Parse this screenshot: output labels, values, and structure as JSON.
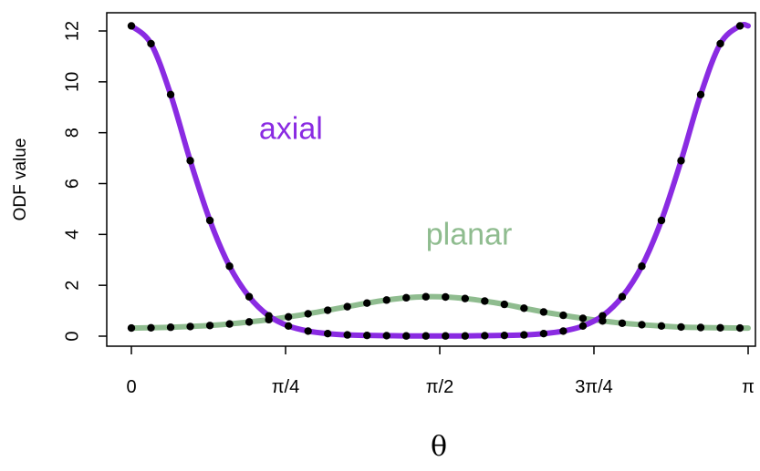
{
  "chart_data": {
    "type": "line",
    "xlabel": "θ",
    "ylabel": "ODF value",
    "xlim": [
      0,
      3.14159
    ],
    "ylim": [
      -0.4,
      12.6
    ],
    "x_ticks": [
      {
        "value": 0,
        "label": "0"
      },
      {
        "value": 0.7854,
        "label": "π/4"
      },
      {
        "value": 1.5708,
        "label": "π/2"
      },
      {
        "value": 2.3562,
        "label": "3π/4"
      },
      {
        "value": 3.14159,
        "label": "π"
      }
    ],
    "y_ticks": [
      0,
      2,
      4,
      6,
      8,
      10,
      12
    ],
    "grid": false,
    "annotations": [
      {
        "text": "axial",
        "x": 0.65,
        "y": 7.75,
        "color": "#8a2be2"
      },
      {
        "text": "planar",
        "x": 1.5,
        "y": 3.6,
        "color": "#8fbc8f"
      }
    ],
    "series": [
      {
        "name": "axial",
        "color": "#8a2be2",
        "x": [
          0,
          0.1,
          0.2,
          0.3,
          0.4,
          0.5,
          0.6,
          0.7,
          0.8,
          0.9,
          1.0,
          1.1,
          1.2,
          1.3,
          1.4,
          1.5,
          1.6,
          1.7,
          1.8,
          1.9,
          2.0,
          2.1,
          2.2,
          2.3,
          2.4,
          2.5,
          2.6,
          2.7,
          2.8,
          2.9,
          3.0,
          3.1,
          3.14159
        ],
        "values": [
          12.2,
          11.5,
          9.5,
          6.9,
          4.55,
          2.75,
          1.55,
          0.8,
          0.4,
          0.2,
          0.1,
          0.05,
          0.03,
          0.02,
          0.01,
          0.01,
          0.01,
          0.01,
          0.02,
          0.03,
          0.05,
          0.1,
          0.2,
          0.4,
          0.8,
          1.55,
          2.75,
          4.55,
          6.9,
          9.5,
          11.5,
          12.2,
          12.2
        ]
      },
      {
        "name": "planar",
        "color": "#8fbc8f",
        "x": [
          0,
          0.1,
          0.2,
          0.3,
          0.4,
          0.5,
          0.6,
          0.7,
          0.8,
          0.9,
          1.0,
          1.1,
          1.2,
          1.3,
          1.4,
          1.5,
          1.6,
          1.7,
          1.8,
          1.9,
          2.0,
          2.1,
          2.2,
          2.3,
          2.4,
          2.5,
          2.6,
          2.7,
          2.8,
          2.9,
          3.0,
          3.1,
          3.14159
        ],
        "values": [
          0.32,
          0.33,
          0.35,
          0.38,
          0.42,
          0.48,
          0.56,
          0.65,
          0.76,
          0.88,
          1.02,
          1.16,
          1.3,
          1.42,
          1.51,
          1.55,
          1.54,
          1.48,
          1.38,
          1.25,
          1.1,
          0.95,
          0.82,
          0.7,
          0.6,
          0.51,
          0.45,
          0.4,
          0.36,
          0.34,
          0.33,
          0.32,
          0.32
        ]
      }
    ]
  }
}
